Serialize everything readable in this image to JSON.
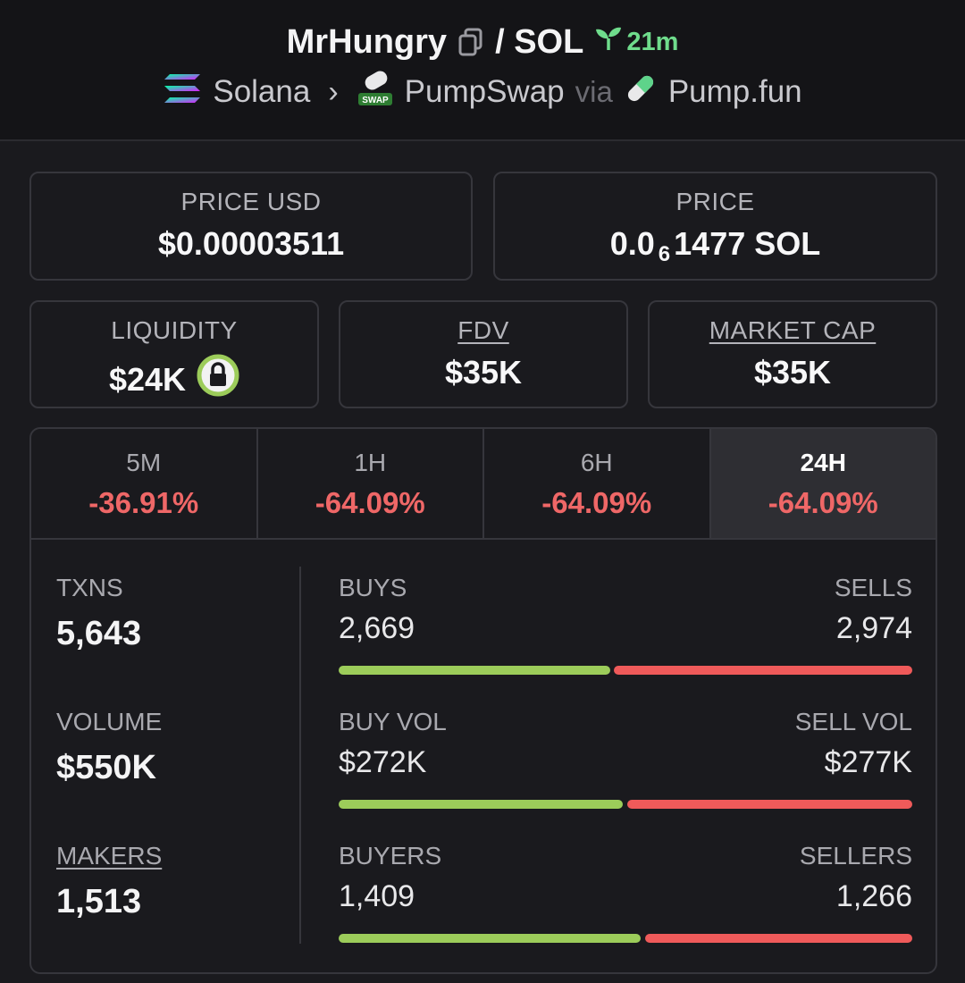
{
  "header": {
    "token": "MrHungry",
    "pair": "/ SOL",
    "age": "21m",
    "chain": "Solana",
    "dex": "PumpSwap",
    "via": "via",
    "launchpad": "Pump.fun",
    "dex_icon_text": "SWAP"
  },
  "prices": {
    "usd_label": "PRICE USD",
    "usd_value": "$0.00003511",
    "native_label": "PRICE",
    "native_prefix": "0.0",
    "native_zeros": "6",
    "native_suffix": "1477 SOL"
  },
  "metrics": {
    "liquidity_label": "LIQUIDITY",
    "liquidity_value": "$24K",
    "fdv_label": "FDV",
    "fdv_value": "$35K",
    "mcap_label": "MARKET CAP",
    "mcap_value": "$35K"
  },
  "tabs": [
    {
      "label": "5M",
      "value": "-36.91%"
    },
    {
      "label": "1H",
      "value": "-64.09%"
    },
    {
      "label": "6H",
      "value": "-64.09%"
    },
    {
      "label": "24H",
      "value": "-64.09%"
    }
  ],
  "stats": {
    "txns_label": "TXNS",
    "txns_value": "5,643",
    "volume_label": "VOLUME",
    "volume_value": "$550K",
    "makers_label": "MAKERS",
    "makers_value": "1,513",
    "buys_label": "BUYS",
    "buys_value": "2,669",
    "sells_label": "SELLS",
    "sells_value": "2,974",
    "buyvol_label": "BUY VOL",
    "buyvol_value": "$272K",
    "sellvol_label": "SELL VOL",
    "sellvol_value": "$277K",
    "buyers_label": "BUYERS",
    "buyers_value": "1,409",
    "sellers_label": "SELLERS",
    "sellers_value": "1,266"
  },
  "colors": {
    "positive": "#9ccc5a",
    "negative": "#ef5a5a",
    "age_badge": "#6fdc8c"
  },
  "icons": [
    "copy-icon",
    "sprout-icon",
    "solana-icon",
    "pumpswap-icon",
    "pill-icon",
    "lock-icon"
  ]
}
